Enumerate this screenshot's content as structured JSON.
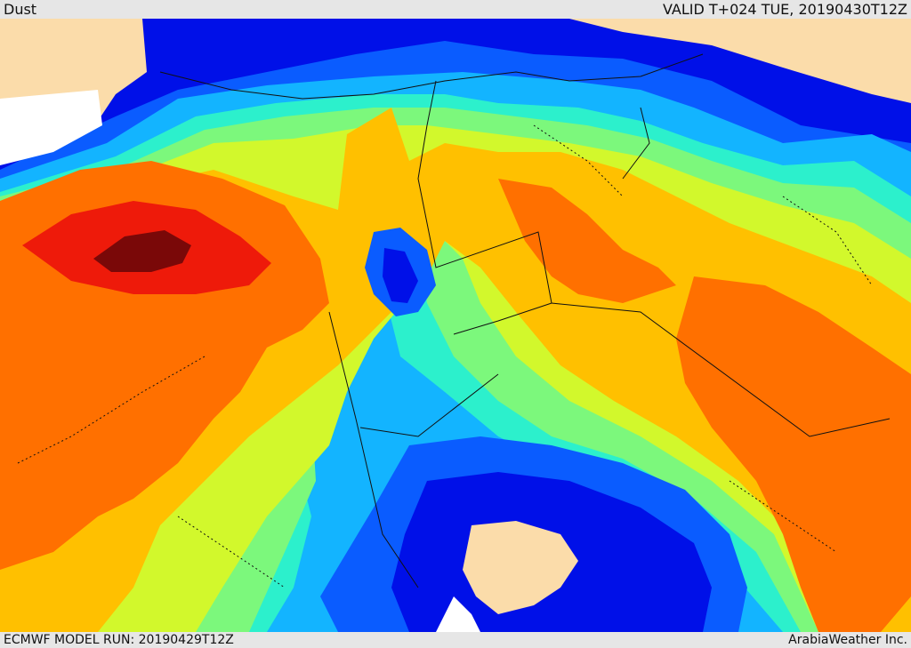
{
  "header": {
    "product_title": "Dust",
    "valid_time": "VALID T+024 TUE, 20190430T12Z"
  },
  "footer": {
    "model_run": "ECMWF MODEL RUN: 20190429T12Z",
    "credit": "ArabiaWeather Inc."
  },
  "palette": {
    "land_background": "#fbdcaa",
    "sea_background": "#ffffff",
    "level_1": "#0010e8",
    "level_2": "#0a5cff",
    "level_3": "#13b4ff",
    "level_4": "#2cf0cc",
    "level_5": "#7cf87c",
    "level_6": "#d2f82c",
    "level_7": "#ffc000",
    "level_8": "#ff7000",
    "level_9": "#ee1a0a",
    "level_10": "#7a0808",
    "border_color": "#111111"
  }
}
